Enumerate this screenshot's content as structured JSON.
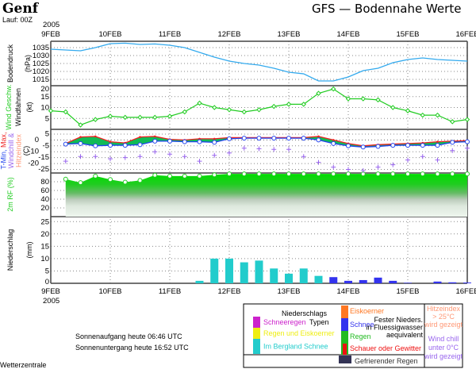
{
  "header": {
    "city": "Genf",
    "run": "Lauf: 00Z",
    "title": "GFS — Bodennahe Werte",
    "year": "2005"
  },
  "x_axis": {
    "start_hour": 0,
    "end_hour": 168,
    "step_hours": 6,
    "day_labels": [
      "9FEB",
      "10FEB",
      "11FEB",
      "12FEB",
      "13FEB",
      "14FEB",
      "15FEB",
      "16FEB"
    ]
  },
  "chart_data": [
    {
      "type": "line",
      "name": "pressure",
      "ylabel": "Bodendruck",
      "unit": "(hPa)",
      "ylim": [
        1011,
        1039
      ],
      "ticks": [
        1035,
        1030,
        1025,
        1020,
        1015
      ],
      "color": "#33aaee",
      "x_hours": [
        0,
        6,
        12,
        18,
        24,
        30,
        36,
        42,
        48,
        54,
        60,
        66,
        72,
        78,
        84,
        90,
        96,
        102,
        108,
        114,
        120,
        126,
        132,
        138,
        144,
        150,
        156,
        162,
        168
      ],
      "values": [
        1034,
        1033.5,
        1033,
        1035,
        1037.5,
        1037.8,
        1037,
        1037.3,
        1036.5,
        1035,
        1032,
        1029,
        1026.5,
        1025,
        1024,
        1022,
        1019.5,
        1018.5,
        1014,
        1014,
        1016.5,
        1020.5,
        1022,
        1025.5,
        1027.5,
        1028.5,
        1027.5,
        1027,
        1026.5
      ]
    },
    {
      "type": "line",
      "name": "wind",
      "ylabel": "Wind Geschw.",
      "ylabel2": "Windfahnen",
      "unit": "(kt)",
      "ylim": [
        0,
        20
      ],
      "ticks": [
        20,
        15,
        10,
        5
      ],
      "color": "#22cc22",
      "x_hours": [
        0,
        6,
        12,
        18,
        24,
        30,
        36,
        42,
        48,
        54,
        60,
        66,
        72,
        78,
        84,
        90,
        96,
        102,
        108,
        114,
        120,
        126,
        132,
        138,
        144,
        150,
        156,
        162,
        168
      ],
      "values": [
        8.5,
        8,
        2,
        4.5,
        6,
        5.5,
        5.5,
        5.5,
        6,
        8,
        12,
        10,
        9,
        8,
        9,
        10.5,
        11.5,
        11.5,
        16.5,
        18.5,
        14,
        14,
        13.5,
        10,
        8.5,
        6.5,
        6.5,
        3.5,
        4.5
      ]
    },
    {
      "type": "line",
      "name": "temperature",
      "ylabel_parts": [
        "T-Min,",
        "Max,",
        "Windchill &",
        "Hitzeindex"
      ],
      "unit": "(C)",
      "ylim": [
        -28,
        9
      ],
      "ticks": [
        5,
        0,
        -5,
        -10,
        -15,
        -20,
        -25
      ],
      "x_hours": [
        6,
        12,
        18,
        24,
        30,
        36,
        42,
        48,
        54,
        60,
        66,
        72,
        78,
        84,
        90,
        96,
        102,
        108,
        114,
        120,
        126,
        132,
        138,
        144,
        150,
        156,
        162,
        168
      ],
      "series": [
        {
          "name": "T-Max",
          "color": "#ee2222",
          "values": [
            -3,
            2.5,
            3,
            -1.5,
            -2.5,
            2.5,
            3,
            0.5,
            0,
            1,
            1,
            2,
            2,
            2,
            2,
            2,
            2,
            3,
            0,
            -3,
            -5,
            -4,
            -3.5,
            -3,
            -2.5,
            -1.5,
            -1,
            -0.5
          ]
        },
        {
          "name": "T-Min",
          "color": "#2244ee",
          "values": [
            -3.5,
            -3,
            -5,
            -4.5,
            -4.5,
            -4,
            -1,
            -1,
            -1.5,
            -1.5,
            -2,
            1,
            1.5,
            1.5,
            1.5,
            1.5,
            1.5,
            0,
            -3,
            -5,
            -6,
            -5.5,
            -4.5,
            -4.5,
            -4.5,
            -4.5,
            -2,
            -1.5
          ]
        },
        {
          "name": "Windchill",
          "color": "#9966ee",
          "values": [
            -18,
            -14,
            -14,
            -16,
            -15,
            -14,
            -10,
            -12,
            -14,
            -18,
            -13,
            -11,
            -7,
            -7.5,
            -8,
            -8,
            -14,
            -19,
            -23,
            -25,
            -26,
            -23,
            -21,
            -17,
            -14,
            -17,
            -9,
            -7
          ]
        }
      ]
    },
    {
      "type": "area",
      "name": "humidity",
      "ylabel": "2m RF (%)",
      "ylim": [
        0,
        100
      ],
      "ticks": [
        80,
        60,
        40,
        20
      ],
      "color": "#22dd22",
      "x_hours": [
        6,
        12,
        18,
        24,
        30,
        36,
        42,
        48,
        54,
        60,
        66,
        72,
        78,
        84,
        90,
        96,
        102,
        108,
        114,
        120,
        126,
        132,
        138,
        144,
        150,
        156,
        162,
        168
      ],
      "values": [
        86,
        78,
        93,
        85,
        79,
        83,
        95,
        93,
        93,
        93,
        96,
        98,
        98,
        98,
        98,
        98,
        98,
        98,
        98,
        98,
        98,
        98,
        98,
        98,
        98,
        98,
        98,
        98
      ]
    },
    {
      "type": "bar",
      "name": "precipitation",
      "ylabel": "Niederschlag",
      "unit": "(mm)",
      "ylim": [
        0,
        27
      ],
      "ticks": [
        25,
        20,
        15,
        10,
        5,
        0
      ],
      "x_hours": [
        60,
        66,
        72,
        78,
        84,
        90,
        96,
        102,
        108,
        114,
        120,
        126,
        132,
        138,
        144,
        156,
        162,
        168
      ],
      "values": [
        1,
        10,
        10,
        8.5,
        9.2,
        6,
        3.9,
        6,
        3,
        2.5,
        1,
        1.3,
        2.3,
        1,
        0.2,
        0.7,
        0.4,
        0.3
      ],
      "kinds": [
        "rain-snow-mountain",
        "rain-snow-mountain",
        "rain-snow-mountain",
        "rain-snow-mountain",
        "rain-snow-mountain",
        "rain-snow-mountain",
        "rain-snow-mountain",
        "rain-snow-mountain",
        "rain-snow-mountain",
        "snow",
        "snow",
        "snow",
        "snow",
        "snow",
        "snow",
        "snow",
        "snow",
        "snow"
      ],
      "colors": {
        "rain-snow-mountain": "#22cccc",
        "snow": "#3333ee"
      }
    }
  ],
  "sun": {
    "rise": "Sonnenaufgang heute 06:46 UTC",
    "set": "Sonnenuntergang heute 16:52 UTC"
  },
  "legend": {
    "title1": "Niederschlags",
    "title2": "Typen",
    "items": [
      {
        "label": "Schneeregen",
        "color": "#cc22cc"
      },
      {
        "label": "Regen und Eiskoerner",
        "color": "#eeee11"
      },
      {
        "label": "Im Bergland Schnee",
        "color": "#22cccc"
      },
      {
        "label": "Eiskoerner",
        "color": "#ff7722"
      },
      {
        "label": "Schnee",
        "color": "#3333ee"
      },
      {
        "label": "Regen",
        "color": "#22bb22"
      },
      {
        "label": "Schauer oder Gewitter",
        "color": "#ee1111"
      },
      {
        "label": "Gefrierender Regen",
        "color": "#333355"
      }
    ],
    "solid_note": [
      "Fester Nieders.",
      "in Fluessigwasser",
      "aequivalent"
    ],
    "heat_note": [
      "Hitzeindex",
      "> 25°C",
      "wird gezeigt"
    ],
    "chill_note": [
      "Wind chill",
      "unter 0°C",
      "wird gezeigt"
    ]
  },
  "footer": {
    "source": "Wetterzentrale"
  }
}
